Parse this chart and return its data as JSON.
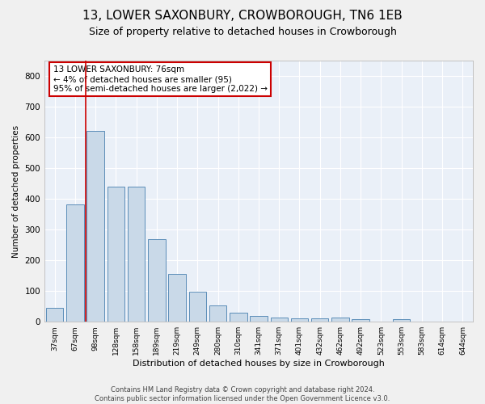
{
  "title": "13, LOWER SAXONBURY, CROWBOROUGH, TN6 1EB",
  "subtitle": "Size of property relative to detached houses in Crowborough",
  "xlabel": "Distribution of detached houses by size in Crowborough",
  "ylabel": "Number of detached properties",
  "footer_line1": "Contains HM Land Registry data © Crown copyright and database right 2024.",
  "footer_line2": "Contains public sector information licensed under the Open Government Licence v3.0.",
  "bar_color": "#c9d9e8",
  "bar_edge_color": "#5b8db8",
  "categories": [
    "37sqm",
    "67sqm",
    "98sqm",
    "128sqm",
    "158sqm",
    "189sqm",
    "219sqm",
    "249sqm",
    "280sqm",
    "310sqm",
    "341sqm",
    "371sqm",
    "401sqm",
    "432sqm",
    "462sqm",
    "492sqm",
    "523sqm",
    "553sqm",
    "583sqm",
    "614sqm",
    "644sqm"
  ],
  "values": [
    45,
    383,
    622,
    440,
    440,
    268,
    155,
    97,
    52,
    29,
    18,
    15,
    12,
    12,
    15,
    8,
    0,
    8,
    0,
    0,
    0
  ],
  "ylim": [
    0,
    850
  ],
  "yticks": [
    0,
    100,
    200,
    300,
    400,
    500,
    600,
    700,
    800
  ],
  "annotation_text": "13 LOWER SAXONBURY: 76sqm\n← 4% of detached houses are smaller (95)\n95% of semi-detached houses are larger (2,022) →",
  "vline_x": 1.5,
  "annotation_box_color": "#ffffff",
  "annotation_box_edge": "#cc0000",
  "background_color": "#eaf0f8",
  "grid_color": "#ffffff",
  "vline_color": "#cc0000",
  "title_fontsize": 11,
  "subtitle_fontsize": 9,
  "fig_bg_color": "#f0f0f0"
}
